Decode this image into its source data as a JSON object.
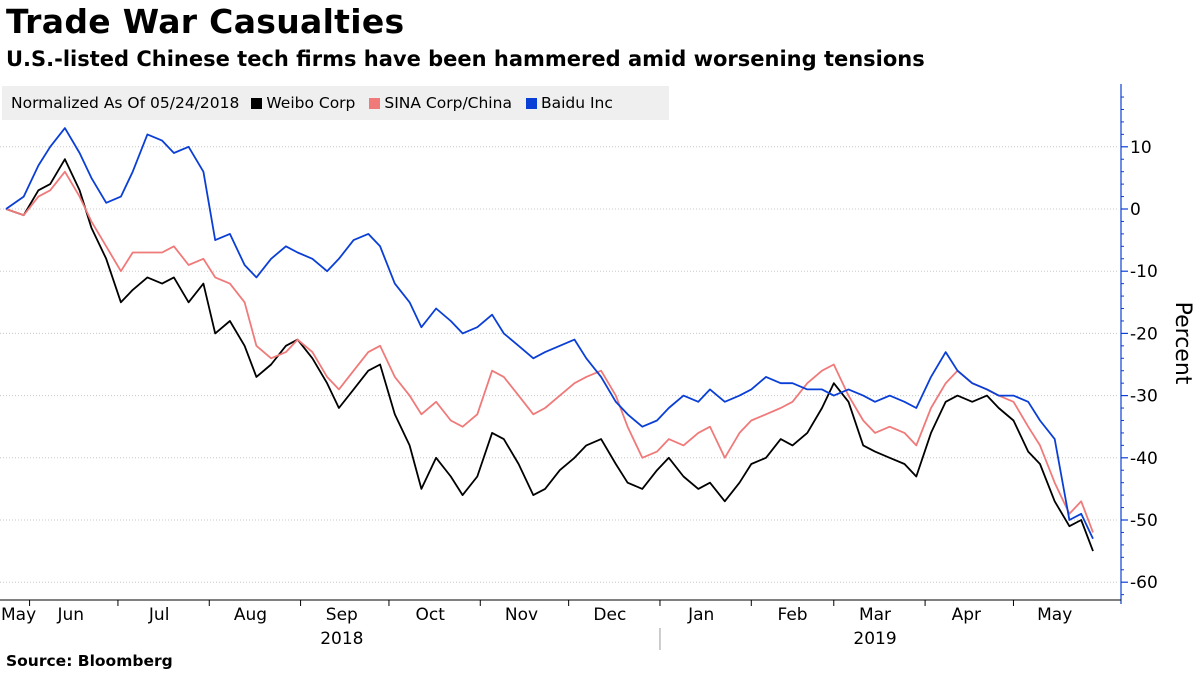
{
  "header": {
    "title": "Trade War Casualties",
    "subtitle": "U.S.-listed Chinese tech firms have been hammered amid worsening tensions"
  },
  "footer": {
    "source": "Source:  Bloomberg"
  },
  "legend": {
    "note": "Normalized As Of 05/24/2018",
    "items": [
      {
        "name": "Weibo Corp",
        "color": "#000000"
      },
      {
        "name": "SINA Corp/China",
        "color": "#f07a7a"
      },
      {
        "name": "Baidu Inc",
        "color": "#0a3fd6"
      }
    ]
  },
  "chart_data": {
    "type": "line",
    "ylabel": "Percent",
    "ylim": [
      -62,
      20
    ],
    "yticks": [
      10,
      0,
      -10,
      -20,
      -30,
      -40,
      -50,
      -60
    ],
    "y_axis_side": "right",
    "grid": "horizontal dotted",
    "x_range": [
      "2018-05-24",
      "2019-05-28"
    ],
    "month_labels": [
      {
        "label": "May",
        "date": "2018-05-24"
      },
      {
        "label": "Jun",
        "date": "2018-06-15"
      },
      {
        "label": "Jul",
        "date": "2018-07-15"
      },
      {
        "label": "Aug",
        "date": "2018-08-15"
      },
      {
        "label": "Sep",
        "date": "2018-09-15"
      },
      {
        "label": "Oct",
        "date": "2018-10-15"
      },
      {
        "label": "Nov",
        "date": "2018-11-15"
      },
      {
        "label": "Dec",
        "date": "2018-12-15"
      },
      {
        "label": "Jan",
        "date": "2019-01-15"
      },
      {
        "label": "Feb",
        "date": "2019-02-15"
      },
      {
        "label": "Mar",
        "date": "2019-03-15"
      },
      {
        "label": "Apr",
        "date": "2019-04-15"
      },
      {
        "label": "May",
        "date": "2019-05-15"
      }
    ],
    "month_ticks": [
      "2018-06-01",
      "2018-07-01",
      "2018-08-01",
      "2018-09-01",
      "2018-10-01",
      "2018-11-01",
      "2018-12-01",
      "2019-01-01",
      "2019-02-01",
      "2019-03-01",
      "2019-04-01",
      "2019-05-01"
    ],
    "year_labels": [
      {
        "label": "2018",
        "date": "2018-09-15"
      },
      {
        "label": "2019",
        "date": "2019-03-15"
      }
    ],
    "year_divider": "2019-01-01",
    "series": [
      {
        "name": "Weibo Corp",
        "color": "#000000",
        "points": [
          [
            "2018-05-24",
            0
          ],
          [
            "2018-05-30",
            -1
          ],
          [
            "2018-06-04",
            3
          ],
          [
            "2018-06-08",
            4
          ],
          [
            "2018-06-13",
            8
          ],
          [
            "2018-06-18",
            3
          ],
          [
            "2018-06-22",
            -3
          ],
          [
            "2018-06-27",
            -8
          ],
          [
            "2018-07-02",
            -15
          ],
          [
            "2018-07-06",
            -13
          ],
          [
            "2018-07-11",
            -11
          ],
          [
            "2018-07-16",
            -12
          ],
          [
            "2018-07-20",
            -11
          ],
          [
            "2018-07-25",
            -15
          ],
          [
            "2018-07-30",
            -12
          ],
          [
            "2018-08-03",
            -20
          ],
          [
            "2018-08-08",
            -18
          ],
          [
            "2018-08-13",
            -22
          ],
          [
            "2018-08-17",
            -27
          ],
          [
            "2018-08-22",
            -25
          ],
          [
            "2018-08-27",
            -22
          ],
          [
            "2018-08-31",
            -21
          ],
          [
            "2018-09-05",
            -24
          ],
          [
            "2018-09-10",
            -28
          ],
          [
            "2018-09-14",
            -32
          ],
          [
            "2018-09-19",
            -29
          ],
          [
            "2018-09-24",
            -26
          ],
          [
            "2018-09-28",
            -25
          ],
          [
            "2018-10-03",
            -33
          ],
          [
            "2018-10-08",
            -38
          ],
          [
            "2018-10-12",
            -45
          ],
          [
            "2018-10-17",
            -40
          ],
          [
            "2018-10-22",
            -43
          ],
          [
            "2018-10-26",
            -46
          ],
          [
            "2018-10-31",
            -43
          ],
          [
            "2018-11-05",
            -36
          ],
          [
            "2018-11-09",
            -37
          ],
          [
            "2018-11-14",
            -41
          ],
          [
            "2018-11-19",
            -46
          ],
          [
            "2018-11-23",
            -45
          ],
          [
            "2018-11-28",
            -42
          ],
          [
            "2018-12-03",
            -40
          ],
          [
            "2018-12-07",
            -38
          ],
          [
            "2018-12-12",
            -37
          ],
          [
            "2018-12-17",
            -41
          ],
          [
            "2018-12-21",
            -44
          ],
          [
            "2018-12-26",
            -45
          ],
          [
            "2018-12-31",
            -42
          ],
          [
            "2019-01-04",
            -40
          ],
          [
            "2019-01-09",
            -43
          ],
          [
            "2019-01-14",
            -45
          ],
          [
            "2019-01-18",
            -44
          ],
          [
            "2019-01-23",
            -47
          ],
          [
            "2019-01-28",
            -44
          ],
          [
            "2019-02-01",
            -41
          ],
          [
            "2019-02-06",
            -40
          ],
          [
            "2019-02-11",
            -37
          ],
          [
            "2019-02-15",
            -38
          ],
          [
            "2019-02-20",
            -36
          ],
          [
            "2019-02-25",
            -32
          ],
          [
            "2019-03-01",
            -28
          ],
          [
            "2019-03-06",
            -31
          ],
          [
            "2019-03-11",
            -38
          ],
          [
            "2019-03-15",
            -39
          ],
          [
            "2019-03-20",
            -40
          ],
          [
            "2019-03-25",
            -41
          ],
          [
            "2019-03-29",
            -43
          ],
          [
            "2019-04-03",
            -36
          ],
          [
            "2019-04-08",
            -31
          ],
          [
            "2019-04-12",
            -30
          ],
          [
            "2019-04-17",
            -31
          ],
          [
            "2019-04-22",
            -30
          ],
          [
            "2019-04-26",
            -32
          ],
          [
            "2019-05-01",
            -34
          ],
          [
            "2019-05-06",
            -39
          ],
          [
            "2019-05-10",
            -41
          ],
          [
            "2019-05-15",
            -47
          ],
          [
            "2019-05-20",
            -51
          ],
          [
            "2019-05-24",
            -50
          ],
          [
            "2019-05-28",
            -55
          ]
        ]
      },
      {
        "name": "SINA Corp/China",
        "color": "#f07a7a",
        "points": [
          [
            "2018-05-24",
            0
          ],
          [
            "2018-05-30",
            -1
          ],
          [
            "2018-06-04",
            2
          ],
          [
            "2018-06-08",
            3
          ],
          [
            "2018-06-13",
            6
          ],
          [
            "2018-06-18",
            2
          ],
          [
            "2018-06-22",
            -2
          ],
          [
            "2018-06-27",
            -6
          ],
          [
            "2018-07-02",
            -10
          ],
          [
            "2018-07-06",
            -7
          ],
          [
            "2018-07-11",
            -7
          ],
          [
            "2018-07-16",
            -7
          ],
          [
            "2018-07-20",
            -6
          ],
          [
            "2018-07-25",
            -9
          ],
          [
            "2018-07-30",
            -8
          ],
          [
            "2018-08-03",
            -11
          ],
          [
            "2018-08-08",
            -12
          ],
          [
            "2018-08-13",
            -15
          ],
          [
            "2018-08-17",
            -22
          ],
          [
            "2018-08-22",
            -24
          ],
          [
            "2018-08-27",
            -23
          ],
          [
            "2018-08-31",
            -21
          ],
          [
            "2018-09-05",
            -23
          ],
          [
            "2018-09-10",
            -27
          ],
          [
            "2018-09-14",
            -29
          ],
          [
            "2018-09-19",
            -26
          ],
          [
            "2018-09-24",
            -23
          ],
          [
            "2018-09-28",
            -22
          ],
          [
            "2018-10-03",
            -27
          ],
          [
            "2018-10-08",
            -30
          ],
          [
            "2018-10-12",
            -33
          ],
          [
            "2018-10-17",
            -31
          ],
          [
            "2018-10-22",
            -34
          ],
          [
            "2018-10-26",
            -35
          ],
          [
            "2018-10-31",
            -33
          ],
          [
            "2018-11-05",
            -26
          ],
          [
            "2018-11-09",
            -27
          ],
          [
            "2018-11-14",
            -30
          ],
          [
            "2018-11-19",
            -33
          ],
          [
            "2018-11-23",
            -32
          ],
          [
            "2018-11-28",
            -30
          ],
          [
            "2018-12-03",
            -28
          ],
          [
            "2018-12-07",
            -27
          ],
          [
            "2018-12-12",
            -26
          ],
          [
            "2018-12-17",
            -30
          ],
          [
            "2018-12-21",
            -35
          ],
          [
            "2018-12-26",
            -40
          ],
          [
            "2018-12-31",
            -39
          ],
          [
            "2019-01-04",
            -37
          ],
          [
            "2019-01-09",
            -38
          ],
          [
            "2019-01-14",
            -36
          ],
          [
            "2019-01-18",
            -35
          ],
          [
            "2019-01-23",
            -40
          ],
          [
            "2019-01-28",
            -36
          ],
          [
            "2019-02-01",
            -34
          ],
          [
            "2019-02-06",
            -33
          ],
          [
            "2019-02-11",
            -32
          ],
          [
            "2019-02-15",
            -31
          ],
          [
            "2019-02-20",
            -28
          ],
          [
            "2019-02-25",
            -26
          ],
          [
            "2019-03-01",
            -25
          ],
          [
            "2019-03-06",
            -30
          ],
          [
            "2019-03-11",
            -34
          ],
          [
            "2019-03-15",
            -36
          ],
          [
            "2019-03-20",
            -35
          ],
          [
            "2019-03-25",
            -36
          ],
          [
            "2019-03-29",
            -38
          ],
          [
            "2019-04-03",
            -32
          ],
          [
            "2019-04-08",
            -28
          ],
          [
            "2019-04-12",
            -26
          ],
          [
            "2019-04-17",
            -28
          ],
          [
            "2019-04-22",
            -29
          ],
          [
            "2019-04-26",
            -30
          ],
          [
            "2019-05-01",
            -31
          ],
          [
            "2019-05-06",
            -35
          ],
          [
            "2019-05-10",
            -38
          ],
          [
            "2019-05-15",
            -44
          ],
          [
            "2019-05-20",
            -49
          ],
          [
            "2019-05-24",
            -47
          ],
          [
            "2019-05-28",
            -52
          ]
        ]
      },
      {
        "name": "Baidu Inc",
        "color": "#0a3fd6",
        "points": [
          [
            "2018-05-24",
            0
          ],
          [
            "2018-05-30",
            2
          ],
          [
            "2018-06-04",
            7
          ],
          [
            "2018-06-08",
            10
          ],
          [
            "2018-06-13",
            13
          ],
          [
            "2018-06-18",
            9
          ],
          [
            "2018-06-22",
            5
          ],
          [
            "2018-06-27",
            1
          ],
          [
            "2018-07-02",
            2
          ],
          [
            "2018-07-06",
            6
          ],
          [
            "2018-07-11",
            12
          ],
          [
            "2018-07-16",
            11
          ],
          [
            "2018-07-20",
            9
          ],
          [
            "2018-07-25",
            10
          ],
          [
            "2018-07-30",
            6
          ],
          [
            "2018-08-03",
            -5
          ],
          [
            "2018-08-08",
            -4
          ],
          [
            "2018-08-13",
            -9
          ],
          [
            "2018-08-17",
            -11
          ],
          [
            "2018-08-22",
            -8
          ],
          [
            "2018-08-27",
            -6
          ],
          [
            "2018-08-31",
            -7
          ],
          [
            "2018-09-05",
            -8
          ],
          [
            "2018-09-10",
            -10
          ],
          [
            "2018-09-14",
            -8
          ],
          [
            "2018-09-19",
            -5
          ],
          [
            "2018-09-24",
            -4
          ],
          [
            "2018-09-28",
            -6
          ],
          [
            "2018-10-03",
            -12
          ],
          [
            "2018-10-08",
            -15
          ],
          [
            "2018-10-12",
            -19
          ],
          [
            "2018-10-17",
            -16
          ],
          [
            "2018-10-22",
            -18
          ],
          [
            "2018-10-26",
            -20
          ],
          [
            "2018-10-31",
            -19
          ],
          [
            "2018-11-05",
            -17
          ],
          [
            "2018-11-09",
            -20
          ],
          [
            "2018-11-14",
            -22
          ],
          [
            "2018-11-19",
            -24
          ],
          [
            "2018-11-23",
            -23
          ],
          [
            "2018-11-28",
            -22
          ],
          [
            "2018-12-03",
            -21
          ],
          [
            "2018-12-07",
            -24
          ],
          [
            "2018-12-12",
            -27
          ],
          [
            "2018-12-17",
            -31
          ],
          [
            "2018-12-21",
            -33
          ],
          [
            "2018-12-26",
            -35
          ],
          [
            "2018-12-31",
            -34
          ],
          [
            "2019-01-04",
            -32
          ],
          [
            "2019-01-09",
            -30
          ],
          [
            "2019-01-14",
            -31
          ],
          [
            "2019-01-18",
            -29
          ],
          [
            "2019-01-23",
            -31
          ],
          [
            "2019-01-28",
            -30
          ],
          [
            "2019-02-01",
            -29
          ],
          [
            "2019-02-06",
            -27
          ],
          [
            "2019-02-11",
            -28
          ],
          [
            "2019-02-15",
            -28
          ],
          [
            "2019-02-20",
            -29
          ],
          [
            "2019-02-25",
            -29
          ],
          [
            "2019-03-01",
            -30
          ],
          [
            "2019-03-06",
            -29
          ],
          [
            "2019-03-11",
            -30
          ],
          [
            "2019-03-15",
            -31
          ],
          [
            "2019-03-20",
            -30
          ],
          [
            "2019-03-25",
            -31
          ],
          [
            "2019-03-29",
            -32
          ],
          [
            "2019-04-03",
            -27
          ],
          [
            "2019-04-08",
            -23
          ],
          [
            "2019-04-12",
            -26
          ],
          [
            "2019-04-17",
            -28
          ],
          [
            "2019-04-22",
            -29
          ],
          [
            "2019-04-26",
            -30
          ],
          [
            "2019-05-01",
            -30
          ],
          [
            "2019-05-06",
            -31
          ],
          [
            "2019-05-10",
            -34
          ],
          [
            "2019-05-15",
            -37
          ],
          [
            "2019-05-20",
            -50
          ],
          [
            "2019-05-24",
            -49
          ],
          [
            "2019-05-28",
            -53
          ]
        ]
      }
    ]
  }
}
